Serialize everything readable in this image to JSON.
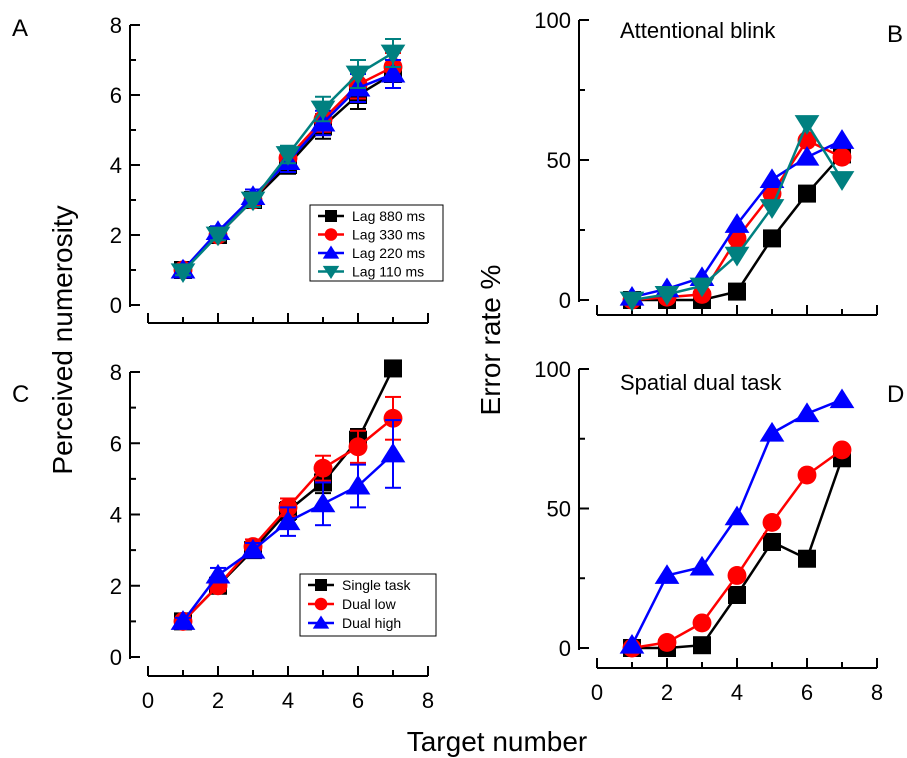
{
  "figure": {
    "shared_ylabel_left": "Perceived numerosity",
    "shared_ylabel_right": "Error rate %",
    "shared_xlabel": "Target number"
  },
  "chart_data": [
    {
      "panel": "A",
      "type": "line",
      "title": "",
      "ylim": [
        0,
        8
      ],
      "xlim": [
        0,
        8
      ],
      "yticks": [
        "0",
        "2",
        "4",
        "6",
        "8"
      ],
      "xticks": [
        "0",
        "2",
        "4",
        "6",
        "8"
      ],
      "legend_position": "bottom-right",
      "x": [
        1,
        2,
        3,
        4,
        5,
        6,
        7
      ],
      "series": [
        {
          "name": "Lag 880 ms",
          "color": "#000000",
          "marker": "square",
          "values": [
            1.0,
            2.0,
            3.0,
            4.0,
            5.1,
            6.0,
            6.6
          ],
          "err": [
            0.12,
            0.15,
            0.2,
            0.25,
            0.35,
            0.4,
            0.4
          ]
        },
        {
          "name": "Lag 330 ms",
          "color": "#ff0000",
          "marker": "circle",
          "values": [
            1.0,
            2.0,
            3.0,
            4.2,
            5.3,
            6.3,
            6.8
          ],
          "err": [
            0.1,
            0.15,
            0.2,
            0.25,
            0.35,
            0.4,
            0.4
          ]
        },
        {
          "name": "Lag 220 ms",
          "color": "#0000ff",
          "marker": "triangle",
          "values": [
            1.0,
            2.1,
            3.1,
            4.1,
            5.2,
            6.2,
            6.6
          ],
          "err": [
            0.1,
            0.15,
            0.2,
            0.3,
            0.35,
            0.4,
            0.4
          ]
        },
        {
          "name": "Lag 110 ms",
          "color": "#008080",
          "marker": "triangle-down",
          "values": [
            0.95,
            2.0,
            3.0,
            4.3,
            5.6,
            6.6,
            7.2
          ],
          "err": [
            0.1,
            0.15,
            0.2,
            0.25,
            0.35,
            0.4,
            0.4
          ]
        }
      ]
    },
    {
      "panel": "B",
      "type": "line",
      "title": "Attentional blink",
      "ylim": [
        0,
        100
      ],
      "xlim": [
        0,
        8
      ],
      "yticks": [
        "0",
        "50",
        "100"
      ],
      "x": [
        1,
        2,
        3,
        4,
        5,
        6,
        7
      ],
      "series": [
        {
          "name": "Lag 880 ms",
          "color": "#000000",
          "marker": "square",
          "values": [
            0,
            0,
            0,
            3,
            22,
            38,
            52
          ]
        },
        {
          "name": "Lag 330 ms",
          "color": "#ff0000",
          "marker": "circle",
          "values": [
            0,
            1,
            2,
            22,
            38,
            57,
            51
          ]
        },
        {
          "name": "Lag 220 ms",
          "color": "#0000ff",
          "marker": "triangle",
          "values": [
            1,
            4,
            8,
            27,
            43,
            51,
            57
          ]
        },
        {
          "name": "Lag 110 ms",
          "color": "#008080",
          "marker": "triangle-down",
          "values": [
            0,
            2,
            5,
            16,
            33,
            63,
            43
          ]
        }
      ]
    },
    {
      "panel": "C",
      "type": "line",
      "title": "",
      "ylim": [
        0,
        8
      ],
      "xlim": [
        0,
        8
      ],
      "yticks": [
        "0",
        "2",
        "4",
        "6",
        "8"
      ],
      "xticks": [
        "0",
        "2",
        "4",
        "6",
        "8"
      ],
      "legend_position": "bottom-right",
      "x": [
        1,
        2,
        3,
        4,
        5,
        6,
        7
      ],
      "series": [
        {
          "name": "Single task",
          "color": "#000000",
          "marker": "square",
          "values": [
            1.0,
            2.0,
            3.0,
            4.1,
            4.9,
            6.1,
            8.1
          ],
          "err": [
            0.1,
            0.15,
            0.2,
            0.25,
            0.3,
            0.3,
            0.1
          ]
        },
        {
          "name": "Dual low",
          "color": "#ff0000",
          "marker": "circle",
          "values": [
            1.0,
            2.0,
            3.1,
            4.2,
            5.3,
            5.9,
            6.7
          ],
          "err": [
            0.1,
            0.15,
            0.2,
            0.25,
            0.35,
            0.45,
            0.6
          ]
        },
        {
          "name": "Dual high",
          "color": "#0000ff",
          "marker": "triangle",
          "values": [
            1.0,
            2.3,
            3.0,
            3.8,
            4.3,
            4.8,
            5.7
          ],
          "err": [
            0.1,
            0.2,
            0.2,
            0.4,
            0.6,
            0.6,
            0.95
          ]
        }
      ]
    },
    {
      "panel": "D",
      "type": "line",
      "title": "Spatial dual task",
      "ylim": [
        0,
        100
      ],
      "xlim": [
        0,
        8
      ],
      "yticks": [
        "0",
        "50",
        "100"
      ],
      "xticks": [
        "0",
        "2",
        "4",
        "6",
        "8"
      ],
      "x": [
        1,
        2,
        3,
        4,
        5,
        6,
        7
      ],
      "series": [
        {
          "name": "Single task",
          "color": "#000000",
          "marker": "square",
          "values": [
            0,
            0,
            1,
            19,
            38,
            32,
            68
          ]
        },
        {
          "name": "Dual low",
          "color": "#ff0000",
          "marker": "circle",
          "values": [
            0,
            2,
            9,
            26,
            45,
            62,
            71
          ]
        },
        {
          "name": "Dual high",
          "color": "#0000ff",
          "marker": "triangle",
          "values": [
            1,
            26,
            29,
            47,
            77,
            84,
            89
          ]
        }
      ]
    }
  ]
}
